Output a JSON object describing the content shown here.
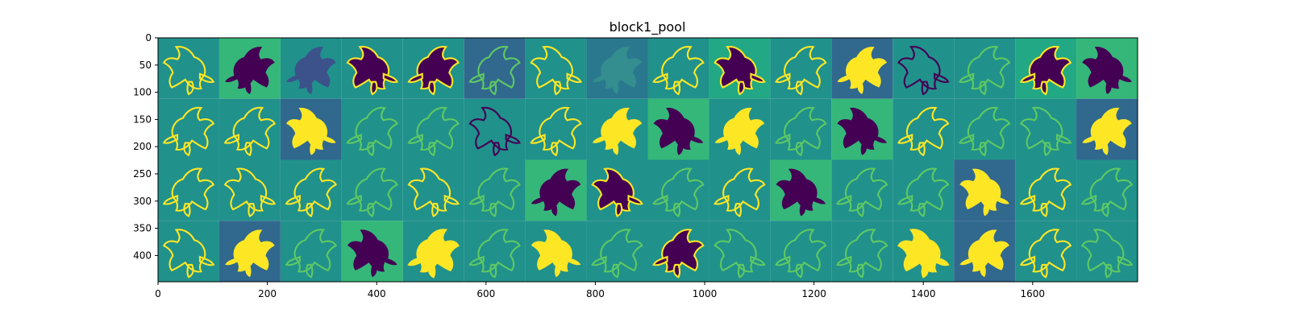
{
  "figure": {
    "title": "block1_pool",
    "x_ticks": [
      "0",
      "200",
      "400",
      "600",
      "800",
      "1000",
      "1200",
      "1400",
      "1600"
    ],
    "y_ticks": [
      "0",
      "50",
      "100",
      "150",
      "200",
      "250",
      "300",
      "350",
      "400"
    ]
  },
  "image": {
    "x_range": [
      0,
      1792
    ],
    "y_range": [
      0,
      448
    ],
    "grid": {
      "rows": 4,
      "cols": 16,
      "tile_size": 112
    },
    "colormap": [
      "#440154",
      "#31688e",
      "#21918c",
      "#35b779",
      "#fde725"
    ],
    "tiles": [
      {
        "bg": "#21918c",
        "fg": "#fde725",
        "style": "outline"
      },
      {
        "bg": "#35b779",
        "fg": "#440154",
        "style": "solid"
      },
      {
        "bg": "#21918c",
        "fg": "#3b528b",
        "style": "solid"
      },
      {
        "bg": "#21918c",
        "fg": "#440154",
        "style": "mixed"
      },
      {
        "bg": "#21918c",
        "fg": "#440154",
        "style": "mixed"
      },
      {
        "bg": "#31688e",
        "fg": "#5ec962",
        "style": "outline"
      },
      {
        "bg": "#21918c",
        "fg": "#fde725",
        "style": "outline"
      },
      {
        "bg": "#2a788e",
        "fg": "#3b9c8e",
        "style": "faint"
      },
      {
        "bg": "#21918c",
        "fg": "#fde725",
        "style": "outline"
      },
      {
        "bg": "#22a884",
        "fg": "#440154",
        "style": "mixed"
      },
      {
        "bg": "#21918c",
        "fg": "#fde725",
        "style": "outline"
      },
      {
        "bg": "#31688e",
        "fg": "#fde725",
        "style": "solid"
      },
      {
        "bg": "#21918c",
        "fg": "#440154",
        "style": "outline"
      },
      {
        "bg": "#21918c",
        "fg": "#5ec962",
        "style": "outline"
      },
      {
        "bg": "#22a884",
        "fg": "#440154",
        "style": "mixed"
      },
      {
        "bg": "#35b779",
        "fg": "#440154",
        "style": "solid"
      },
      {
        "bg": "#21918c",
        "fg": "#fde725",
        "style": "outline"
      },
      {
        "bg": "#21918c",
        "fg": "#fde725",
        "style": "outline"
      },
      {
        "bg": "#31688e",
        "fg": "#fde725",
        "style": "solid"
      },
      {
        "bg": "#21918c",
        "fg": "#5ec962",
        "style": "outline"
      },
      {
        "bg": "#21918c",
        "fg": "#5ec962",
        "style": "outline"
      },
      {
        "bg": "#21918c",
        "fg": "#440154",
        "style": "outline"
      },
      {
        "bg": "#21918c",
        "fg": "#fde725",
        "style": "outline"
      },
      {
        "bg": "#21918c",
        "fg": "#fde725",
        "style": "solid"
      },
      {
        "bg": "#35b779",
        "fg": "#440154",
        "style": "solid"
      },
      {
        "bg": "#21918c",
        "fg": "#fde725",
        "style": "solid"
      },
      {
        "bg": "#21918c",
        "fg": "#5ec962",
        "style": "outline"
      },
      {
        "bg": "#35b779",
        "fg": "#440154",
        "style": "solid"
      },
      {
        "bg": "#21918c",
        "fg": "#fde725",
        "style": "outline"
      },
      {
        "bg": "#21918c",
        "fg": "#5ec962",
        "style": "outline"
      },
      {
        "bg": "#21918c",
        "fg": "#5ec962",
        "style": "outline"
      },
      {
        "bg": "#31688e",
        "fg": "#fde725",
        "style": "solid"
      },
      {
        "bg": "#21918c",
        "fg": "#fde725",
        "style": "outline"
      },
      {
        "bg": "#21918c",
        "fg": "#fde725",
        "style": "outline"
      },
      {
        "bg": "#21918c",
        "fg": "#fde725",
        "style": "outline"
      },
      {
        "bg": "#21918c",
        "fg": "#5ec962",
        "style": "outline"
      },
      {
        "bg": "#21918c",
        "fg": "#fde725",
        "style": "outline"
      },
      {
        "bg": "#21918c",
        "fg": "#5ec962",
        "style": "outline"
      },
      {
        "bg": "#35b779",
        "fg": "#440154",
        "style": "solid"
      },
      {
        "bg": "#21918c",
        "fg": "#440154",
        "style": "mixed"
      },
      {
        "bg": "#21918c",
        "fg": "#5ec962",
        "style": "outline"
      },
      {
        "bg": "#21918c",
        "fg": "#fde725",
        "style": "outline"
      },
      {
        "bg": "#35b779",
        "fg": "#440154",
        "style": "solid"
      },
      {
        "bg": "#21918c",
        "fg": "#5ec962",
        "style": "outline"
      },
      {
        "bg": "#21918c",
        "fg": "#5ec962",
        "style": "outline"
      },
      {
        "bg": "#31688e",
        "fg": "#fde725",
        "style": "solid"
      },
      {
        "bg": "#21918c",
        "fg": "#fde725",
        "style": "outline"
      },
      {
        "bg": "#21918c",
        "fg": "#5ec962",
        "style": "outline"
      },
      {
        "bg": "#21918c",
        "fg": "#fde725",
        "style": "outline"
      },
      {
        "bg": "#31688e",
        "fg": "#fde725",
        "style": "solid"
      },
      {
        "bg": "#21918c",
        "fg": "#5ec962",
        "style": "outline"
      },
      {
        "bg": "#35b779",
        "fg": "#440154",
        "style": "solid"
      },
      {
        "bg": "#21918c",
        "fg": "#fde725",
        "style": "mixed"
      },
      {
        "bg": "#21918c",
        "fg": "#5ec962",
        "style": "outline"
      },
      {
        "bg": "#21918c",
        "fg": "#fde725",
        "style": "solid"
      },
      {
        "bg": "#21918c",
        "fg": "#5ec962",
        "style": "outline"
      },
      {
        "bg": "#21918c",
        "fg": "#440154",
        "style": "mixed"
      },
      {
        "bg": "#21918c",
        "fg": "#5ec962",
        "style": "outline"
      },
      {
        "bg": "#21918c",
        "fg": "#5ec962",
        "style": "outline"
      },
      {
        "bg": "#21918c",
        "fg": "#5ec962",
        "style": "outline"
      },
      {
        "bg": "#21918c",
        "fg": "#fde725",
        "style": "mixed"
      },
      {
        "bg": "#31688e",
        "fg": "#fde725",
        "style": "solid"
      },
      {
        "bg": "#21918c",
        "fg": "#fde725",
        "style": "outline"
      },
      {
        "bg": "#21918c",
        "fg": "#5ec962",
        "style": "outline"
      }
    ]
  }
}
